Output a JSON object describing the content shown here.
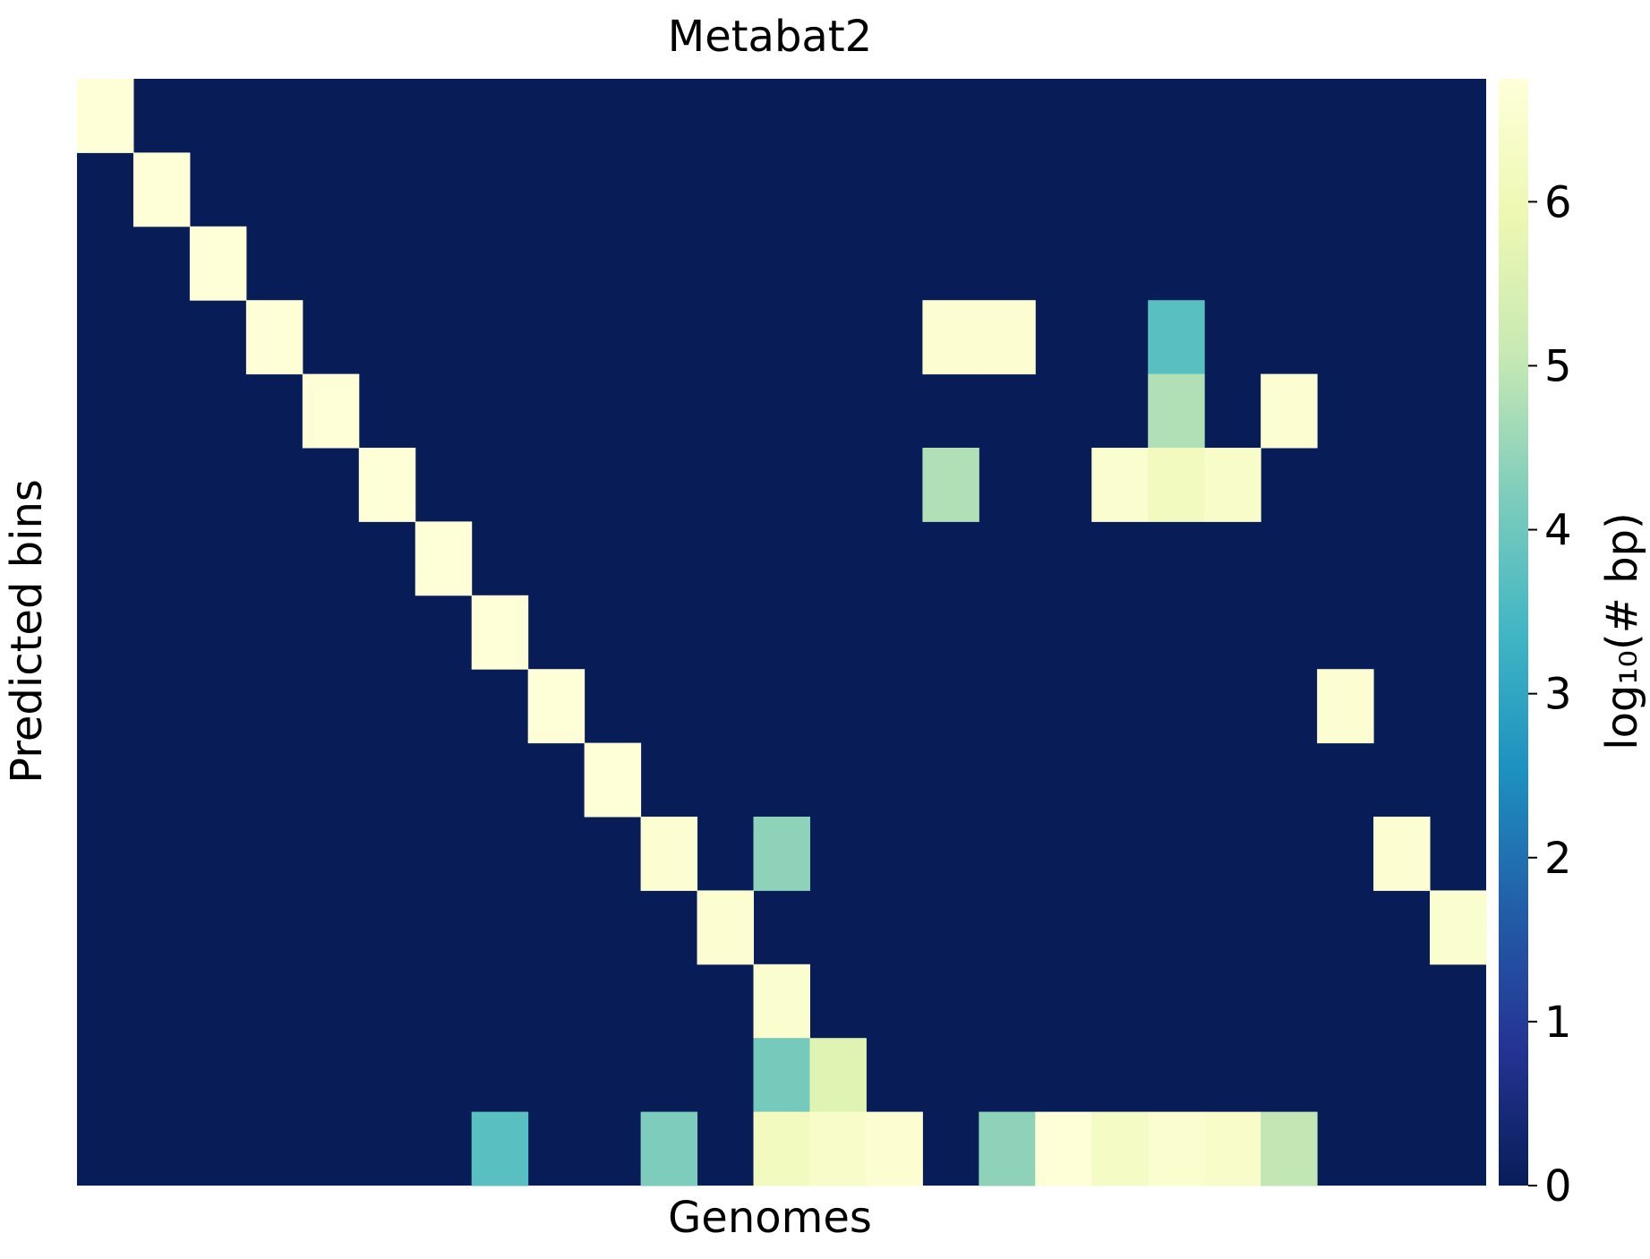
{
  "chart_data": {
    "type": "heatmap",
    "title": "Metabat2",
    "xlabel": "Genomes",
    "ylabel": "Predicted bins",
    "colorbar_label": "log₁₀(# bp)",
    "colorbar_ticks": [
      "0",
      "1",
      "2",
      "3",
      "4",
      "5",
      "6"
    ],
    "vlim": [
      0,
      6.75
    ],
    "colormap": "YlGnBu",
    "n_rows": 15,
    "n_cols": 25,
    "cells": [
      [
        0,
        0,
        6.7
      ],
      [
        1,
        1,
        6.7
      ],
      [
        2,
        2,
        6.7
      ],
      [
        3,
        3,
        6.7
      ],
      [
        3,
        15,
        6.6
      ],
      [
        3,
        16,
        6.6
      ],
      [
        3,
        19,
        3.7
      ],
      [
        4,
        4,
        6.7
      ],
      [
        4,
        19,
        4.8
      ],
      [
        4,
        21,
        6.6
      ],
      [
        5,
        5,
        6.7
      ],
      [
        5,
        15,
        4.8
      ],
      [
        5,
        18,
        6.5
      ],
      [
        5,
        19,
        6.2
      ],
      [
        5,
        20,
        6.4
      ],
      [
        6,
        6,
        6.7
      ],
      [
        7,
        7,
        6.7
      ],
      [
        8,
        8,
        6.7
      ],
      [
        8,
        22,
        6.6
      ],
      [
        9,
        9,
        6.7
      ],
      [
        10,
        10,
        6.6
      ],
      [
        10,
        12,
        4.4
      ],
      [
        10,
        23,
        6.6
      ],
      [
        11,
        11,
        6.6
      ],
      [
        11,
        24,
        6.5
      ],
      [
        12,
        12,
        6.5
      ],
      [
        13,
        12,
        4.1
      ],
      [
        13,
        13,
        5.6
      ],
      [
        14,
        7,
        3.7
      ],
      [
        14,
        10,
        4.2
      ],
      [
        14,
        12,
        6.2
      ],
      [
        14,
        13,
        6.4
      ],
      [
        14,
        14,
        6.6
      ],
      [
        14,
        16,
        4.4
      ],
      [
        14,
        17,
        6.7
      ],
      [
        14,
        18,
        6.3
      ],
      [
        14,
        19,
        6.5
      ],
      [
        14,
        20,
        6.4
      ],
      [
        14,
        21,
        5.0
      ]
    ]
  }
}
